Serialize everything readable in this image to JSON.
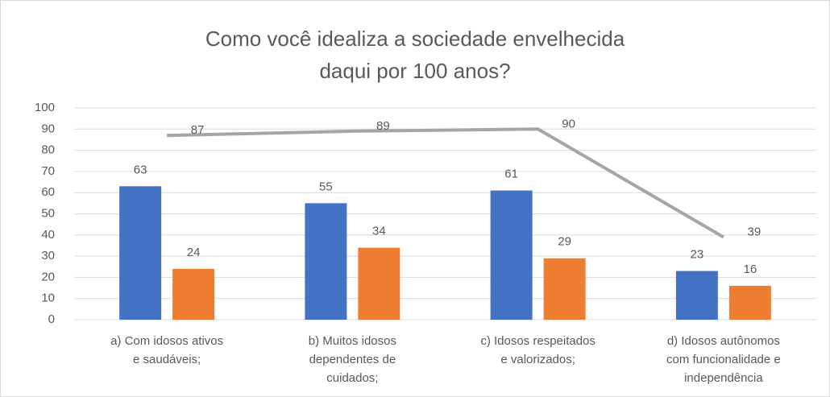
{
  "chart_data": {
    "type": "bar",
    "title": "Como você idealiza a sociedade envelhecida\ndaqui por 100 anos?",
    "categories": [
      "a) Com idosos ativos\ne saudáveis;",
      "b)  Muitos idosos\ndependentes de\ncuidados;",
      "c)  Idosos respeitados\ne valorizados;",
      "d)  Idosos autônomos\ncom funcionalidade e\nindependência"
    ],
    "series": [
      {
        "type": "bar",
        "color": "#4472c4",
        "values": [
          63,
          55,
          61,
          23
        ]
      },
      {
        "type": "bar",
        "color": "#ed7d31",
        "values": [
          24,
          34,
          29,
          16
        ]
      },
      {
        "type": "line",
        "color": "#a5a5a5",
        "values": [
          87,
          89,
          90,
          39
        ]
      }
    ],
    "ylim": [
      0,
      100
    ],
    "yticks": [
      0,
      10,
      20,
      30,
      40,
      50,
      60,
      70,
      80,
      90,
      100
    ],
    "grid": true
  }
}
